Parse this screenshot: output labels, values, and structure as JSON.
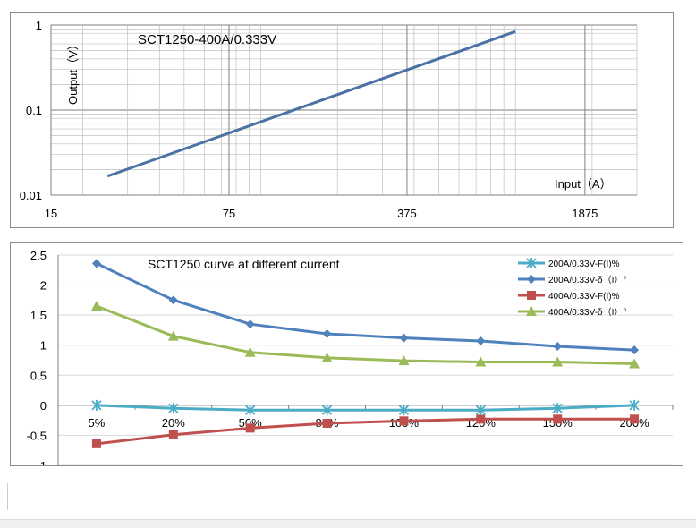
{
  "chart_data": [
    {
      "type": "line",
      "scale": "log-log",
      "title": "SCT1250-400A/0.333V",
      "xlabel": "Input（A）",
      "ylabel": "Output（V）",
      "x_ticks": [
        "15",
        "75",
        "375",
        "1875"
      ],
      "x_tick_values": [
        15,
        75,
        375,
        1875
      ],
      "y_ticks": [
        "0.01",
        "0.1",
        "1"
      ],
      "y_tick_values": [
        0.01,
        0.1,
        1
      ],
      "xlim": [
        15,
        3000
      ],
      "ylim": [
        0.01,
        1
      ],
      "grid": true,
      "series": [
        {
          "name": "SCT1250-400A/0.333V",
          "color": "#4a72a4",
          "x": [
            25,
            1000
          ],
          "y": [
            0.0167,
            0.84
          ]
        }
      ]
    },
    {
      "type": "line",
      "title": "SCT1250 curve at different current",
      "categories": [
        "5%",
        "20%",
        "50%",
        "80%",
        "100%",
        "120%",
        "150%",
        "200%"
      ],
      "y_ticks": [
        "2.5",
        "2",
        "1.5",
        "1",
        "0.5",
        "0",
        "-0.5",
        "-1"
      ],
      "ylim": [
        -1,
        2.5
      ],
      "grid": true,
      "legend": "top-right",
      "series": [
        {
          "name": "200A/0.33V-F(I)%",
          "color": "#4bacc6",
          "marker": "asterisk",
          "values": [
            0,
            -0.05,
            -0.08,
            -0.08,
            -0.08,
            -0.08,
            -0.05,
            0
          ]
        },
        {
          "name": "200A/0.33V-δ（I）°",
          "color": "#4f81bd",
          "marker": "diamond",
          "values": [
            2.36,
            1.75,
            1.35,
            1.19,
            1.12,
            1.07,
            0.98,
            0.92
          ]
        },
        {
          "name": "400A/0.33V-F(I)%",
          "color": "#c0504d",
          "marker": "square",
          "values": [
            -0.64,
            -0.49,
            -0.38,
            -0.3,
            -0.26,
            -0.23,
            -0.23,
            -0.23
          ]
        },
        {
          "name": "400A/0.33V-δ（I）°",
          "color": "#9bbb59",
          "marker": "triangle",
          "values": [
            1.65,
            1.15,
            0.88,
            0.79,
            0.74,
            0.72,
            0.72,
            0.69
          ]
        }
      ]
    }
  ]
}
